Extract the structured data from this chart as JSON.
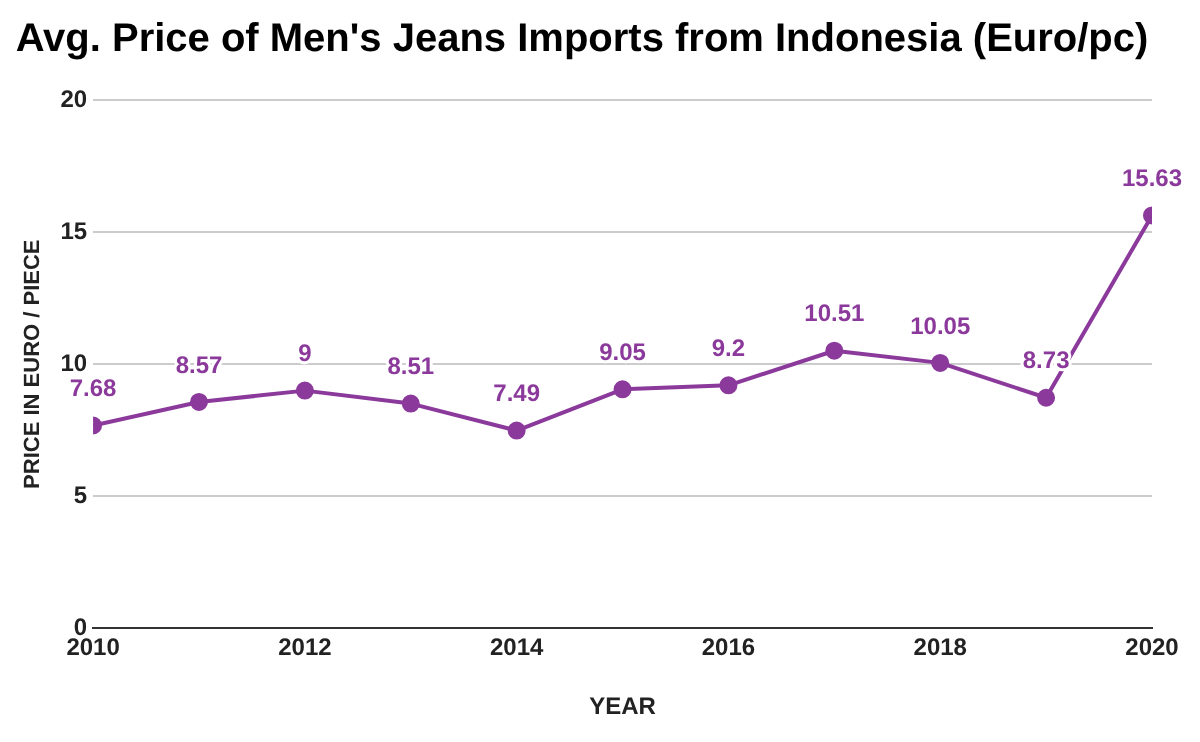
{
  "chart_data": {
    "type": "line",
    "title": "Avg. Price of Men's Jeans Imports from Indonesia (Euro/pc)",
    "xlabel": "YEAR",
    "ylabel": "PRICE IN EURO / PIECE",
    "x": [
      2010,
      2011,
      2012,
      2013,
      2014,
      2015,
      2016,
      2017,
      2018,
      2019,
      2020
    ],
    "series": [
      {
        "color": "#8b3a9c",
        "values": [
          7.68,
          8.57,
          9,
          8.51,
          7.49,
          9.05,
          9.2,
          10.51,
          10.05,
          8.73,
          15.63
        ]
      }
    ],
    "xlim": [
      2010,
      2020
    ],
    "xticks": [
      2010,
      2012,
      2014,
      2016,
      2018,
      2020
    ],
    "ylim": [
      0,
      20
    ],
    "yticks": [
      0,
      5,
      10,
      15,
      20
    ],
    "grid": "y",
    "legend": false,
    "marker": "circle",
    "line_style": "solid",
    "data_labels": true
  }
}
